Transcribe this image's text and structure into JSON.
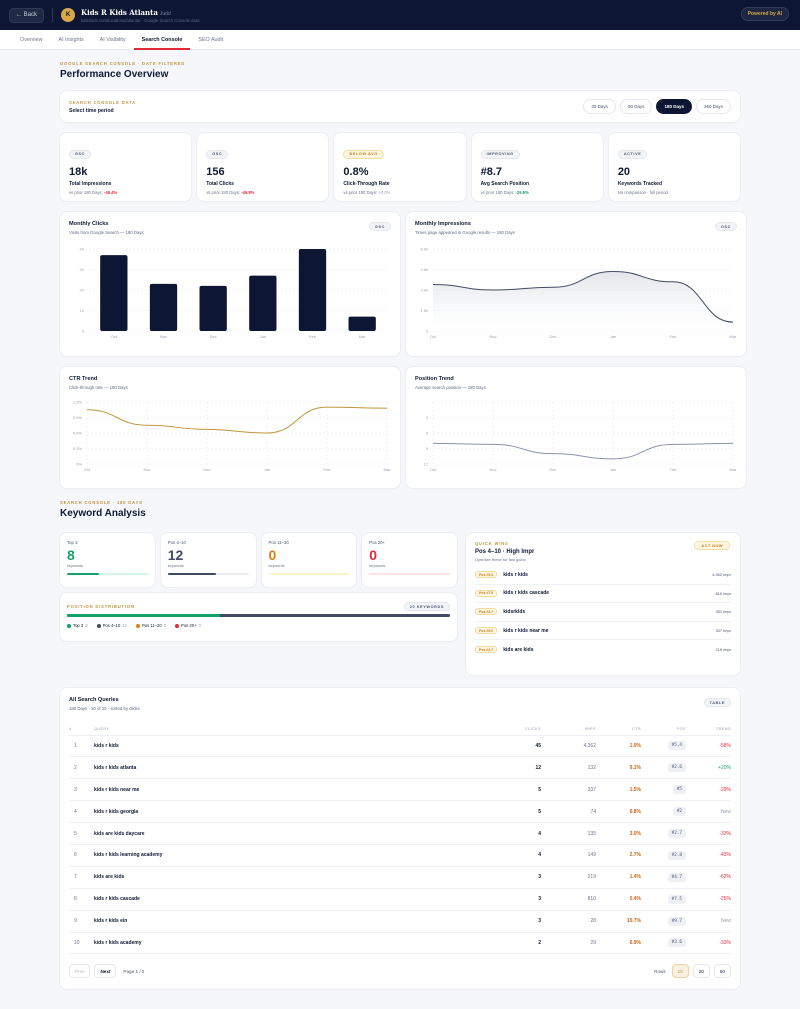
{
  "header": {
    "back_label": "← Back",
    "logo_letter": "K",
    "title": "Kids R Kids Atlanta",
    "owner": "Judd",
    "subtitle": "kidsrkids.com/locations/atlanta/ · Google Search Console data",
    "powered": "Powered by AI"
  },
  "tabs": [
    {
      "label": "Overview"
    },
    {
      "label": "AI Insights"
    },
    {
      "label": "AI Visibility"
    },
    {
      "label": "Search Console",
      "active": true
    },
    {
      "label": "SEO Audit"
    }
  ],
  "overview": {
    "eyebrow": "Google Search Console · Date-Filtered",
    "title": "Performance Overview"
  },
  "period": {
    "eyebrow": "Search Console Data",
    "label": "Select time period",
    "options": [
      "30 Days",
      "90 Days",
      "180 Days",
      "360 Days"
    ],
    "selected": "180 Days"
  },
  "kpis": [
    {
      "badge": "GSC",
      "value": "18k",
      "name": "Total Impressions",
      "cmp": "vs prior 180 Days:",
      "delta": "-49.4%",
      "delta_type": "neg"
    },
    {
      "badge": "GSC",
      "value": "156",
      "name": "Total Clicks",
      "cmp": "vs prior 180 Days:",
      "delta": "-45.8%",
      "delta_type": "neg"
    },
    {
      "badge": "Below Avg",
      "value": "0.8%",
      "name": "Click-Through Rate",
      "cmp": "vs prior 180 Days:",
      "delta": "+0.0%",
      "delta_type": "none"
    },
    {
      "badge": "Improving",
      "value": "#8.7",
      "name": "Avg Search Position",
      "cmp": "vs prior 180 Days:",
      "delta": "-29.8%",
      "delta_type": "pos"
    },
    {
      "badge": "Active",
      "value": "20",
      "name": "Keywords Tracked",
      "cmp": "No comparison · full period",
      "delta": "",
      "delta_type": "none"
    }
  ],
  "chart_data": [
    {
      "type": "bar",
      "title": "Monthly Clicks",
      "subtitle": "Visits from Google Search — 180 Days",
      "badge": "GSC",
      "categories": [
        "Oct",
        "Nov",
        "Dec",
        "Jan",
        "Feb",
        "Mar"
      ],
      "values": [
        37,
        23,
        22,
        27,
        40,
        7
      ],
      "yticks": [
        "0",
        "10",
        "20",
        "30",
        "40"
      ],
      "ylim": [
        0,
        40
      ],
      "grid": true,
      "color": "#0d1733"
    },
    {
      "type": "area",
      "title": "Monthly Impressions",
      "subtitle": "Times page appeared in Google results — 180 Days",
      "badge": "GSC",
      "categories": [
        "Oct",
        "Nov",
        "Dec",
        "Jan",
        "Feb",
        "Mar"
      ],
      "values": [
        3400,
        3000,
        3200,
        4350,
        3600,
        650
      ],
      "yticks": [
        "0",
        "1.5k",
        "3.0k",
        "4.5k",
        "6.0k"
      ],
      "ylim": [
        0,
        6000
      ],
      "grid": true,
      "color": "#434b63"
    },
    {
      "type": "line",
      "title": "CTR Trend",
      "subtitle": "Click-through rate — 180 Days",
      "categories": [
        "Oct",
        "Nov",
        "Dec",
        "Jan",
        "Feb",
        "Mar"
      ],
      "values": [
        1.05,
        0.75,
        0.67,
        0.6,
        1.1,
        1.08
      ],
      "yticks": [
        "0%",
        "0.3%",
        "0.6%",
        "0.9%",
        "1.2%"
      ],
      "ylim": [
        0,
        1.2
      ],
      "grid": true,
      "color": "#c0953c"
    },
    {
      "type": "line",
      "title": "Position Trend",
      "subtitle": "Average search position — 180 Days",
      "categories": [
        "Oct",
        "Nov",
        "Dec",
        "Jan",
        "Feb",
        "Mar"
      ],
      "values": [
        8.0,
        8.2,
        10.0,
        11.0,
        8.2,
        8.0
      ],
      "yticks": [
        "12",
        "9",
        "6",
        "3"
      ],
      "ylim": [
        12,
        0
      ],
      "inverted": true,
      "grid": true,
      "color": "#8a93ab"
    }
  ],
  "keywords": {
    "eyebrow": "Search Console · 180 Days",
    "title": "Keyword Analysis",
    "buckets": [
      {
        "label": "Top 3",
        "count": "8",
        "unit": "keywords",
        "color": "#16a06a",
        "track": "#d4f5e5",
        "pct": 40
      },
      {
        "label": "Pos 4–10",
        "count": "12",
        "unit": "keywords",
        "color": "#434b63",
        "track": "#e8eaef",
        "pct": 60
      },
      {
        "label": "Pos 11–20",
        "count": "0",
        "unit": "keywords",
        "color": "#e07c12",
        "track": "#fdf1c8",
        "pct": 0
      },
      {
        "label": "Pos 20+",
        "count": "0",
        "unit": "keywords",
        "color": "#e02b36",
        "track": "#fde3e3",
        "pct": 0
      }
    ],
    "distribution": {
      "title": "Position Distribution",
      "badge": "20 Keywords",
      "legend": [
        {
          "label": "Top 3",
          "count": "8",
          "color": "#16a06a"
        },
        {
          "label": "Pos 4–10",
          "count": "12",
          "color": "#434b63"
        },
        {
          "label": "Pos 11–20",
          "count": "0",
          "color": "#e07c12"
        },
        {
          "label": "Pos 20+",
          "count": "0",
          "color": "#e02b36"
        }
      ]
    }
  },
  "quick_wins": {
    "eyebrow": "Quick Wins",
    "badge": "Act Now",
    "title": "Pos 4–10 · High Impr",
    "subtitle": "Optimize these for fast gains",
    "items": [
      {
        "pos": "Pos #5.4",
        "keyword": "kids r kids",
        "impr": "4,362 impr"
      },
      {
        "pos": "Pos #7.5",
        "keyword": "kids r kids cascade",
        "impr": "810 impr"
      },
      {
        "pos": "Pos #3.7",
        "keyword": "kidsrkids",
        "impr": "351 impr"
      },
      {
        "pos": "Pos #5.0",
        "keyword": "kids r kids near me",
        "impr": "337 impr"
      },
      {
        "pos": "Pos #4.7",
        "keyword": "kids are kids",
        "impr": "219 impr"
      }
    ]
  },
  "queries": {
    "title": "All Search Queries",
    "subtitle": "180 Days · 10 of 20 · sorted by clicks",
    "badge": "Table",
    "columns": [
      "#",
      "Query",
      "Clicks",
      "Impr",
      "CTR",
      "Pos",
      "Trend"
    ],
    "rows": [
      {
        "n": "1",
        "q": "kids r kids",
        "clicks": "45",
        "impr": "4,362",
        "ctr": "1.0%",
        "pos": "#5.4",
        "trend": "-58%",
        "tt": "neg"
      },
      {
        "n": "2",
        "q": "kids r kids atlanta",
        "clicks": "12",
        "impr": "132",
        "ctr": "9.1%",
        "pos": "#2.6",
        "trend": "+20%",
        "tt": "pos"
      },
      {
        "n": "3",
        "q": "kids r kids near me",
        "clicks": "5",
        "impr": "337",
        "ctr": "1.5%",
        "pos": "#5",
        "trend": "-29%",
        "tt": "neg"
      },
      {
        "n": "4",
        "q": "kids r kids georgia",
        "clicks": "5",
        "impr": "74",
        "ctr": "6.8%",
        "pos": "#2",
        "trend": "New",
        "tt": "new"
      },
      {
        "n": "5",
        "q": "kids are kids daycare",
        "clicks": "4",
        "impr": "135",
        "ctr": "3.0%",
        "pos": "#2.7",
        "trend": "-33%",
        "tt": "neg"
      },
      {
        "n": "6",
        "q": "kids r kids learning academy",
        "clicks": "4",
        "impr": "149",
        "ctr": "2.7%",
        "pos": "#2.8",
        "trend": "-43%",
        "tt": "neg"
      },
      {
        "n": "7",
        "q": "kids are kids",
        "clicks": "3",
        "impr": "219",
        "ctr": "1.4%",
        "pos": "#4.7",
        "trend": "-62%",
        "tt": "neg"
      },
      {
        "n": "8",
        "q": "kids r kids cascade",
        "clicks": "3",
        "impr": "810",
        "ctr": "0.4%",
        "pos": "#7.5",
        "trend": "-25%",
        "tt": "neg"
      },
      {
        "n": "9",
        "q": "kids r kids ein",
        "clicks": "3",
        "impr": "28",
        "ctr": "10.7%",
        "pos": "#9.7",
        "trend": "New",
        "tt": "new"
      },
      {
        "n": "10",
        "q": "kids r kids academy",
        "clicks": "2",
        "impr": "29",
        "ctr": "6.9%",
        "pos": "#3.6",
        "trend": "-33%",
        "tt": "neg"
      }
    ],
    "pager": {
      "prev": "Prev",
      "next": "Next",
      "page": "Page 1 / 2",
      "rows_label": "Rows",
      "sizes": [
        "10",
        "20",
        "50"
      ],
      "selected": "10"
    }
  }
}
